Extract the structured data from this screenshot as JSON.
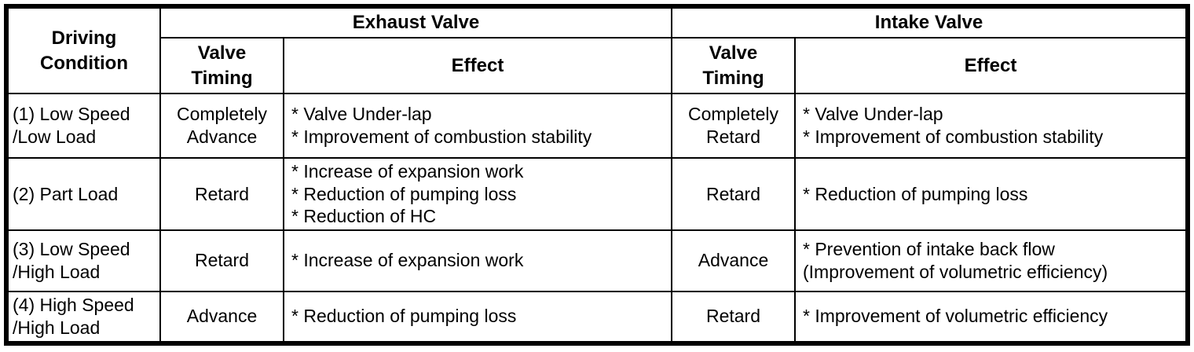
{
  "colors": {
    "background": "#ffffff",
    "border": "#000000",
    "text": "#000000"
  },
  "table": {
    "header": {
      "driving_condition": [
        "Driving",
        "Condition"
      ],
      "exhaust_valve": "Exhaust Valve",
      "intake_valve": "Intake Valve",
      "valve_timing": [
        "Valve",
        "Timing"
      ],
      "effect": "Effect"
    },
    "rows": [
      {
        "condition": [
          "(1) Low Speed",
          "/Low Load"
        ],
        "exhaust_timing": [
          "Completely",
          "Advance"
        ],
        "exhaust_effect": [
          "* Valve Under-lap",
          "* Improvement of combustion stability"
        ],
        "intake_timing": [
          "Completely",
          "Retard"
        ],
        "intake_effect": [
          "* Valve Under-lap",
          "* Improvement of combustion stability"
        ]
      },
      {
        "condition": [
          "(2) Part Load"
        ],
        "exhaust_timing": [
          "Retard"
        ],
        "exhaust_effect": [
          "* Increase of expansion work",
          "* Reduction of pumping loss",
          "* Reduction of HC"
        ],
        "intake_timing": [
          "Retard"
        ],
        "intake_effect": [
          "* Reduction of pumping loss"
        ]
      },
      {
        "condition": [
          "(3) Low Speed",
          "/High Load"
        ],
        "exhaust_timing": [
          "Retard"
        ],
        "exhaust_effect": [
          "* Increase of expansion work"
        ],
        "intake_timing": [
          "Advance"
        ],
        "intake_effect": [
          "* Prevention of intake back flow",
          "(Improvement of volumetric efficiency)"
        ]
      },
      {
        "condition": [
          "(4) High Speed",
          "/High Load"
        ],
        "exhaust_timing": [
          "Advance"
        ],
        "exhaust_effect": [
          "* Reduction of pumping loss"
        ],
        "intake_timing": [
          "Retard"
        ],
        "intake_effect": [
          "* Improvement of volumetric efficiency"
        ]
      }
    ]
  }
}
